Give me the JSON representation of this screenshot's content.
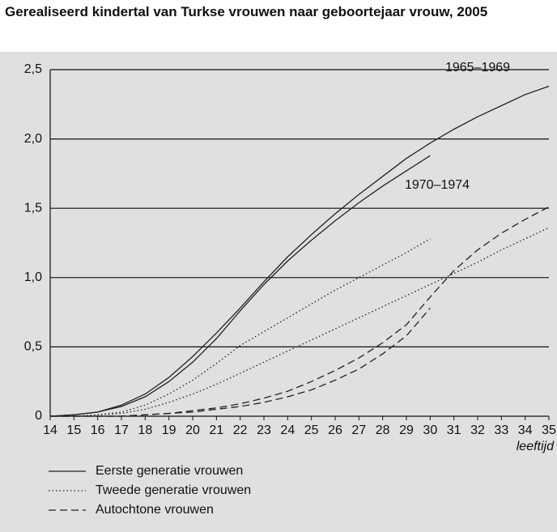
{
  "chart_data": {
    "type": "line",
    "title": "Gerealiseerd kindertal van Turkse vrouwen naar geboortejaar vrouw, 2005",
    "x_label": "leeftijd",
    "x": [
      14,
      15,
      16,
      17,
      18,
      19,
      20,
      21,
      22,
      23,
      24,
      25,
      26,
      27,
      28,
      29,
      30,
      31,
      32,
      33,
      34,
      35
    ],
    "xlim": [
      14,
      35
    ],
    "xticks": [
      14,
      15,
      16,
      17,
      18,
      19,
      20,
      21,
      22,
      23,
      24,
      25,
      26,
      27,
      28,
      29,
      30,
      31,
      32,
      33,
      34,
      35
    ],
    "ylim": [
      0,
      2.5
    ],
    "yticks": [
      0,
      {
        "value": 0.5,
        "label": "0,5"
      },
      {
        "value": 1.0,
        "label": "1,0"
      },
      {
        "value": 1.5,
        "label": "1,5"
      },
      {
        "value": 2.0,
        "label": "2,0"
      },
      {
        "value": 2.5,
        "label": "2,5"
      }
    ],
    "grid": true,
    "legend_items": [
      {
        "label": "Eerste generatie vrouwen",
        "dash": "solid"
      },
      {
        "label": "Tweede generatie vrouwen",
        "dash": "dotted"
      },
      {
        "label": "Autochtone vrouwen",
        "dash": "dashed"
      }
    ],
    "series": [
      {
        "legend": 0,
        "dash": "solid",
        "color": "#222222",
        "values": [
          0,
          0.01,
          0.03,
          0.08,
          0.16,
          0.28,
          0.43,
          0.6,
          0.78,
          0.97,
          1.15,
          1.31,
          1.46,
          1.6,
          1.73,
          1.86,
          1.97,
          2.07,
          2.16,
          2.24,
          2.32,
          2.38
        ]
      },
      {
        "legend": 0,
        "dash": "solid",
        "color": "#222222",
        "values": [
          0,
          0.01,
          0.03,
          0.07,
          0.14,
          0.25,
          0.39,
          0.56,
          0.76,
          0.95,
          1.12,
          1.27,
          1.41,
          1.54,
          1.66,
          1.77,
          1.88,
          null,
          null,
          null,
          null,
          null
        ]
      },
      {
        "legend": 1,
        "dash": "dotted",
        "color": "#222222",
        "values": [
          0,
          0,
          0.01,
          0.03,
          0.08,
          0.16,
          0.26,
          0.38,
          0.51,
          0.61,
          0.71,
          0.81,
          0.91,
          1.0,
          1.09,
          1.18,
          1.28,
          null,
          null,
          null,
          null,
          null
        ]
      },
      {
        "legend": 1,
        "dash": "dotted",
        "color": "#222222",
        "values": [
          0,
          0,
          0.01,
          0.02,
          0.05,
          0.1,
          0.16,
          0.23,
          0.31,
          0.39,
          0.47,
          0.55,
          0.63,
          0.71,
          0.79,
          0.87,
          0.95,
          1.03,
          1.11,
          1.2,
          1.28,
          1.36
        ]
      },
      {
        "legend": 2,
        "dash": "dashed",
        "color": "#222222",
        "values": [
          0,
          0,
          0,
          0,
          0.01,
          0.02,
          0.04,
          0.06,
          0.09,
          0.13,
          0.18,
          0.25,
          0.33,
          0.42,
          0.53,
          0.66,
          0.86,
          1.05,
          1.2,
          1.32,
          1.42,
          1.51
        ]
      },
      {
        "legend": 2,
        "dash": "dashed",
        "color": "#222222",
        "values": [
          0,
          0,
          0,
          0,
          0.01,
          0.02,
          0.03,
          0.05,
          0.07,
          0.1,
          0.14,
          0.19,
          0.26,
          0.34,
          0.45,
          0.58,
          0.78,
          null,
          null,
          null,
          null,
          null
        ]
      }
    ],
    "annotations": [
      {
        "text": "1965–1969",
        "series": 0
      },
      {
        "text": "1970–1974",
        "series": 1
      }
    ]
  }
}
